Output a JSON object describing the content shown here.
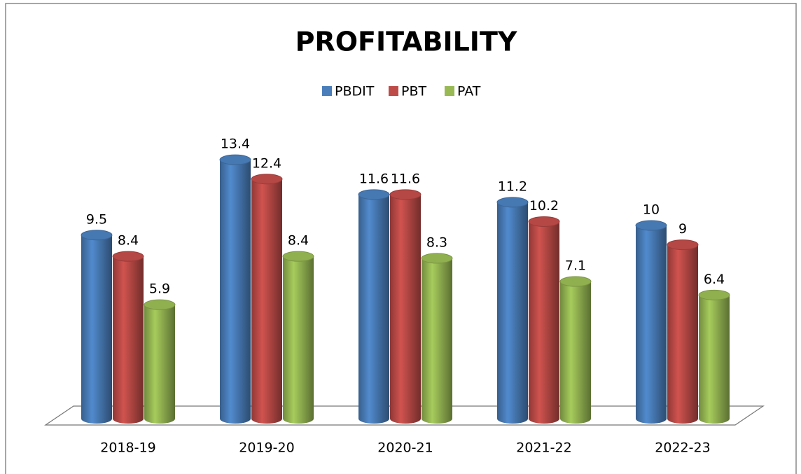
{
  "chart_data": {
    "type": "bar3d",
    "title": "PROFITABILITY",
    "categories": [
      "2018-19",
      "2019-20",
      "2020-21",
      "2021-22",
      "2022-23"
    ],
    "series": [
      {
        "name": "PBDIT",
        "color": "#4a7ebb",
        "values": [
          9.5,
          13.4,
          11.6,
          11.2,
          10
        ]
      },
      {
        "name": "PBT",
        "color": "#be4b48",
        "values": [
          8.4,
          12.4,
          11.6,
          10.2,
          9
        ]
      },
      {
        "name": "PAT",
        "color": "#98b954",
        "values": [
          5.9,
          8.4,
          8.3,
          7.1,
          6.4
        ]
      }
    ],
    "legend": "top"
  }
}
